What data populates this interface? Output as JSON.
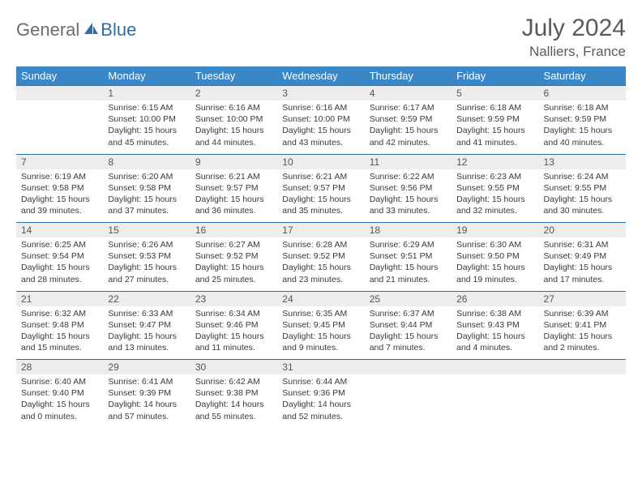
{
  "logo": {
    "part1": "General",
    "part2": "Blue"
  },
  "title": "July 2024",
  "location": "Nalliers, France",
  "colors": {
    "header_bg": "#3a87c8",
    "header_text": "#ffffff",
    "daynum_bg": "#ededed",
    "row_border": "#2f6fa8",
    "text": "#3a3a3a",
    "title_text": "#5a5a5a",
    "logo_gray": "#6b6b6b",
    "logo_blue": "#2f6fa8"
  },
  "weekdays": [
    "Sunday",
    "Monday",
    "Tuesday",
    "Wednesday",
    "Thursday",
    "Friday",
    "Saturday"
  ],
  "weeks": [
    [
      null,
      {
        "n": "1",
        "sr": "6:15 AM",
        "ss": "10:00 PM",
        "dl": "15 hours and 45 minutes."
      },
      {
        "n": "2",
        "sr": "6:16 AM",
        "ss": "10:00 PM",
        "dl": "15 hours and 44 minutes."
      },
      {
        "n": "3",
        "sr": "6:16 AM",
        "ss": "10:00 PM",
        "dl": "15 hours and 43 minutes."
      },
      {
        "n": "4",
        "sr": "6:17 AM",
        "ss": "9:59 PM",
        "dl": "15 hours and 42 minutes."
      },
      {
        "n": "5",
        "sr": "6:18 AM",
        "ss": "9:59 PM",
        "dl": "15 hours and 41 minutes."
      },
      {
        "n": "6",
        "sr": "6:18 AM",
        "ss": "9:59 PM",
        "dl": "15 hours and 40 minutes."
      }
    ],
    [
      {
        "n": "7",
        "sr": "6:19 AM",
        "ss": "9:58 PM",
        "dl": "15 hours and 39 minutes."
      },
      {
        "n": "8",
        "sr": "6:20 AM",
        "ss": "9:58 PM",
        "dl": "15 hours and 37 minutes."
      },
      {
        "n": "9",
        "sr": "6:21 AM",
        "ss": "9:57 PM",
        "dl": "15 hours and 36 minutes."
      },
      {
        "n": "10",
        "sr": "6:21 AM",
        "ss": "9:57 PM",
        "dl": "15 hours and 35 minutes."
      },
      {
        "n": "11",
        "sr": "6:22 AM",
        "ss": "9:56 PM",
        "dl": "15 hours and 33 minutes."
      },
      {
        "n": "12",
        "sr": "6:23 AM",
        "ss": "9:55 PM",
        "dl": "15 hours and 32 minutes."
      },
      {
        "n": "13",
        "sr": "6:24 AM",
        "ss": "9:55 PM",
        "dl": "15 hours and 30 minutes."
      }
    ],
    [
      {
        "n": "14",
        "sr": "6:25 AM",
        "ss": "9:54 PM",
        "dl": "15 hours and 28 minutes."
      },
      {
        "n": "15",
        "sr": "6:26 AM",
        "ss": "9:53 PM",
        "dl": "15 hours and 27 minutes."
      },
      {
        "n": "16",
        "sr": "6:27 AM",
        "ss": "9:52 PM",
        "dl": "15 hours and 25 minutes."
      },
      {
        "n": "17",
        "sr": "6:28 AM",
        "ss": "9:52 PM",
        "dl": "15 hours and 23 minutes."
      },
      {
        "n": "18",
        "sr": "6:29 AM",
        "ss": "9:51 PM",
        "dl": "15 hours and 21 minutes."
      },
      {
        "n": "19",
        "sr": "6:30 AM",
        "ss": "9:50 PM",
        "dl": "15 hours and 19 minutes."
      },
      {
        "n": "20",
        "sr": "6:31 AM",
        "ss": "9:49 PM",
        "dl": "15 hours and 17 minutes."
      }
    ],
    [
      {
        "n": "21",
        "sr": "6:32 AM",
        "ss": "9:48 PM",
        "dl": "15 hours and 15 minutes."
      },
      {
        "n": "22",
        "sr": "6:33 AM",
        "ss": "9:47 PM",
        "dl": "15 hours and 13 minutes."
      },
      {
        "n": "23",
        "sr": "6:34 AM",
        "ss": "9:46 PM",
        "dl": "15 hours and 11 minutes."
      },
      {
        "n": "24",
        "sr": "6:35 AM",
        "ss": "9:45 PM",
        "dl": "15 hours and 9 minutes."
      },
      {
        "n": "25",
        "sr": "6:37 AM",
        "ss": "9:44 PM",
        "dl": "15 hours and 7 minutes."
      },
      {
        "n": "26",
        "sr": "6:38 AM",
        "ss": "9:43 PM",
        "dl": "15 hours and 4 minutes."
      },
      {
        "n": "27",
        "sr": "6:39 AM",
        "ss": "9:41 PM",
        "dl": "15 hours and 2 minutes."
      }
    ],
    [
      {
        "n": "28",
        "sr": "6:40 AM",
        "ss": "9:40 PM",
        "dl": "15 hours and 0 minutes."
      },
      {
        "n": "29",
        "sr": "6:41 AM",
        "ss": "9:39 PM",
        "dl": "14 hours and 57 minutes."
      },
      {
        "n": "30",
        "sr": "6:42 AM",
        "ss": "9:38 PM",
        "dl": "14 hours and 55 minutes."
      },
      {
        "n": "31",
        "sr": "6:44 AM",
        "ss": "9:36 PM",
        "dl": "14 hours and 52 minutes."
      },
      null,
      null,
      null
    ]
  ],
  "labels": {
    "sunrise": "Sunrise: ",
    "sunset": "Sunset: ",
    "daylight": "Daylight: "
  }
}
